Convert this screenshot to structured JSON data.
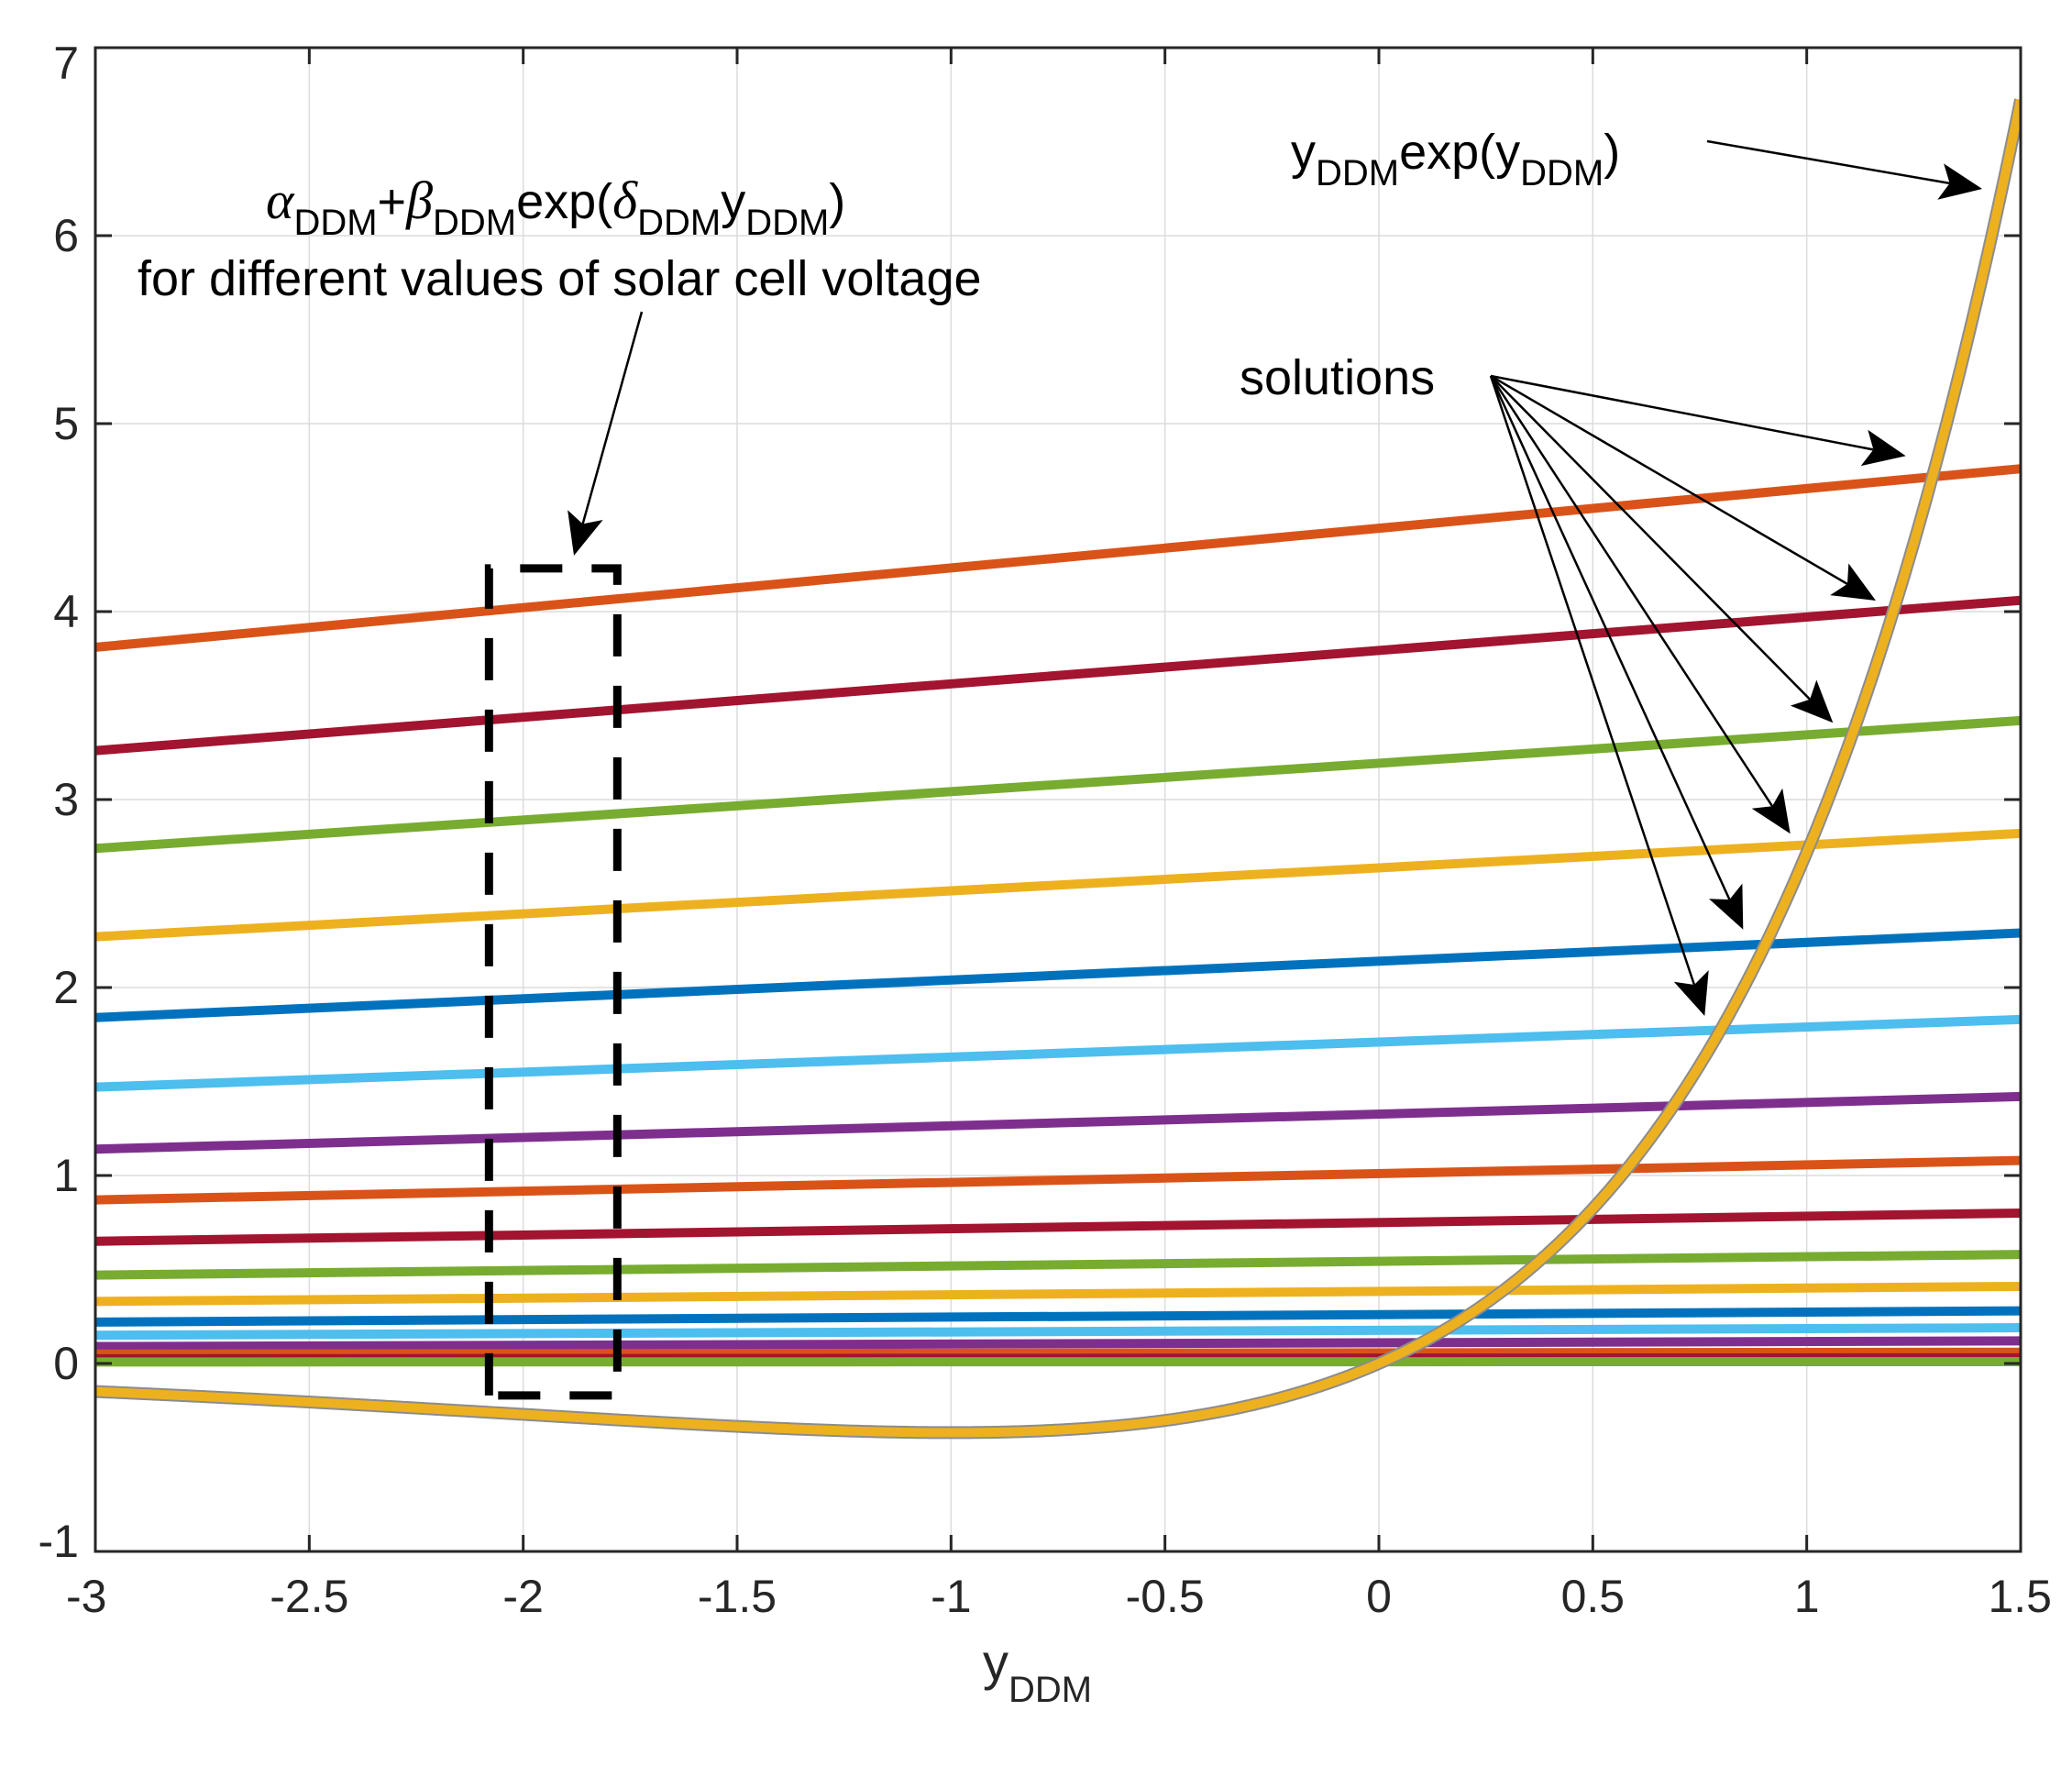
{
  "chart_data": {
    "type": "line",
    "xlabel": {
      "main": "y",
      "sub": "DDM"
    },
    "xlim": [
      -3,
      1.5
    ],
    "ylim": [
      -1,
      7
    ],
    "xticks": [
      "-3",
      "-2.5",
      "-2",
      "-1.5",
      "-1",
      "-0.5",
      "0",
      "0.5",
      "1",
      "1.5"
    ],
    "yticks": [
      "-1",
      "0",
      "1",
      "2",
      "3",
      "4",
      "5",
      "6",
      "7"
    ],
    "grid": true,
    "curve": {
      "function": "y*exp(y)",
      "color": "#EDB120",
      "label": {
        "a": "y",
        "a_sub": "DDM",
        "b": "exp(y",
        "b_sub": "DDM",
        "c": ")"
      }
    },
    "lines": [
      {
        "color": "#D95319",
        "start": 3.81,
        "end": 4.76
      },
      {
        "color": "#A2142F",
        "start": 3.26,
        "end": 4.06
      },
      {
        "color": "#77AC30",
        "start": 2.74,
        "end": 3.42
      },
      {
        "color": "#EDB120",
        "start": 2.27,
        "end": 2.82
      },
      {
        "color": "#0072BD",
        "start": 1.84,
        "end": 2.29
      },
      {
        "color": "#4DBEEE",
        "start": 1.47,
        "end": 1.83
      },
      {
        "color": "#7E2F8E",
        "start": 1.14,
        "end": 1.42
      },
      {
        "color": "#D95319",
        "start": 0.87,
        "end": 1.08
      },
      {
        "color": "#A2142F",
        "start": 0.65,
        "end": 0.8
      },
      {
        "color": "#77AC30",
        "start": 0.47,
        "end": 0.58
      },
      {
        "color": "#EDB120",
        "start": 0.33,
        "end": 0.41
      },
      {
        "color": "#0072BD",
        "start": 0.22,
        "end": 0.28
      },
      {
        "color": "#4DBEEE",
        "start": 0.15,
        "end": 0.19
      },
      {
        "color": "#7E2F8E",
        "start": 0.09,
        "end": 0.12
      },
      {
        "color": "#D95319",
        "start": 0.05,
        "end": 0.06
      },
      {
        "color": "#A2142F",
        "start": 0.025,
        "end": 0.03
      },
      {
        "color": "#77AC30",
        "start": 0.008,
        "end": 0.01
      }
    ],
    "solution_points": [
      {
        "x": 1.27,
        "y": 4.77
      },
      {
        "x": 1.2,
        "y": 4.0
      },
      {
        "x": 1.1,
        "y": 3.35
      },
      {
        "x": 1.0,
        "y": 2.76
      },
      {
        "x": 0.89,
        "y": 2.25
      },
      {
        "x": 0.8,
        "y": 1.79
      }
    ],
    "annotations": {
      "lines_label": {
        "alpha": "α",
        "beta": "β",
        "delta": "δ",
        "sub": "DDM",
        "y": "y",
        "plus": "+",
        "exp_open": "exp(",
        "close": ")",
        "line2": "for different values of solar cell voltage"
      },
      "solutions": "solutions"
    }
  }
}
